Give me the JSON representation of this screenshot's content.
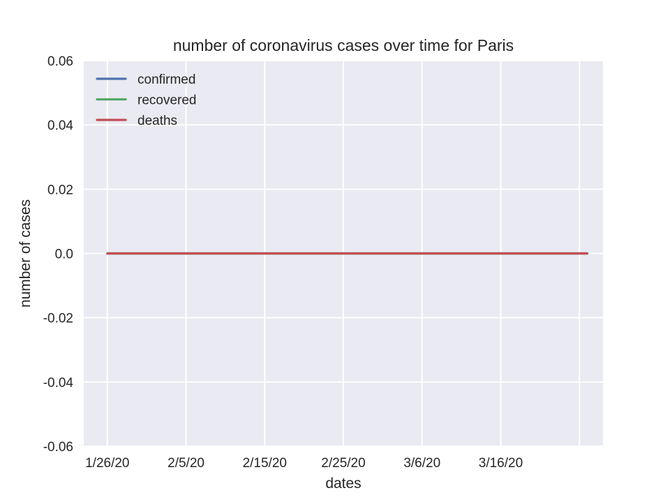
{
  "chart_data": {
    "type": "line",
    "title": "number of coronavirus cases over time for Paris",
    "xlabel": "dates",
    "ylabel": "number of cases",
    "x_start": "1/26/20",
    "x_end": "3/27/20",
    "x_ticks": [
      "1/26/20",
      "2/5/20",
      "2/15/20",
      "2/25/20",
      "3/6/20",
      "3/16/20"
    ],
    "xlim": [
      "1/23/20",
      "3/29/20"
    ],
    "ylim": [
      -0.06,
      0.06
    ],
    "y_ticks": [
      0.06,
      0.04,
      0.02,
      0.0,
      -0.02,
      -0.04,
      -0.06
    ],
    "y_tick_labels": [
      "0.06",
      "0.04",
      "0.02",
      "0.0",
      "-0.02",
      "-0.04",
      "-0.06"
    ],
    "series": [
      {
        "name": "confirmed",
        "color": "#4c72b0",
        "values": "all 0"
      },
      {
        "name": "recovered",
        "color": "#55a868",
        "values": "all 0"
      },
      {
        "name": "deaths",
        "color": "#c44e52",
        "values": "all 0"
      }
    ],
    "grid": true,
    "legend_position": "top-left",
    "background": "#eaeaf2"
  }
}
